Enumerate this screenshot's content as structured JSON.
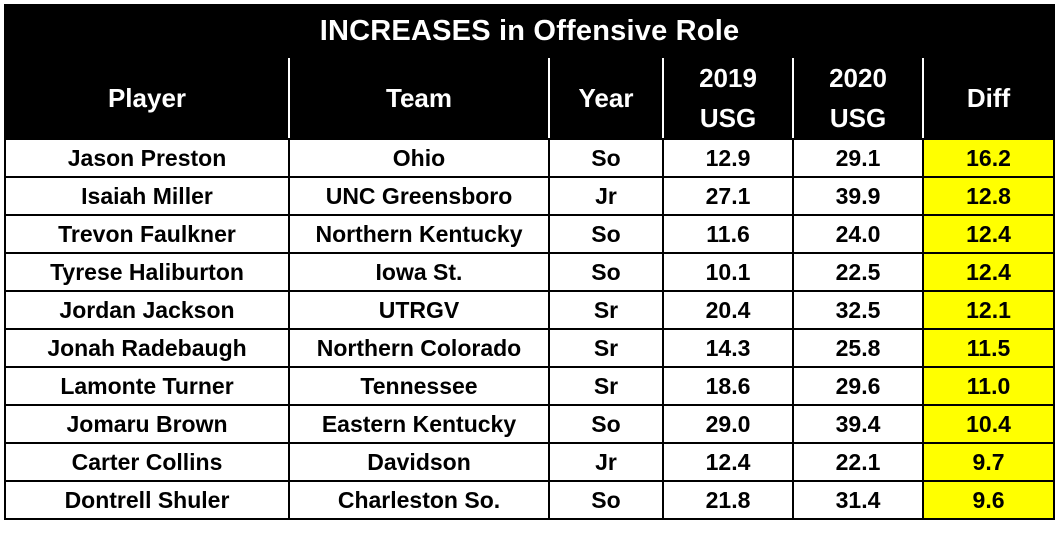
{
  "title": "INCREASES in Offensive Role",
  "columns": {
    "player": "Player",
    "team": "Team",
    "year": "Year",
    "usg2019_line1": "2019",
    "usg2019_line2": "USG",
    "usg2020_line1": "2020",
    "usg2020_line2": "USG",
    "diff": "Diff"
  },
  "highlight_color": "#ffff00",
  "rows": [
    {
      "player": "Jason Preston",
      "team": "Ohio",
      "year": "So",
      "usg2019": "12.9",
      "usg2020": "29.1",
      "diff": "16.2"
    },
    {
      "player": "Isaiah Miller",
      "team": "UNC Greensboro",
      "year": "Jr",
      "usg2019": "27.1",
      "usg2020": "39.9",
      "diff": "12.8"
    },
    {
      "player": "Trevon Faulkner",
      "team": "Northern Kentucky",
      "year": "So",
      "usg2019": "11.6",
      "usg2020": "24.0",
      "diff": "12.4"
    },
    {
      "player": "Tyrese Haliburton",
      "team": "Iowa St.",
      "year": "So",
      "usg2019": "10.1",
      "usg2020": "22.5",
      "diff": "12.4"
    },
    {
      "player": "Jordan Jackson",
      "team": "UTRGV",
      "year": "Sr",
      "usg2019": "20.4",
      "usg2020": "32.5",
      "diff": "12.1"
    },
    {
      "player": "Jonah Radebaugh",
      "team": "Northern Colorado",
      "year": "Sr",
      "usg2019": "14.3",
      "usg2020": "25.8",
      "diff": "11.5"
    },
    {
      "player": "Lamonte Turner",
      "team": "Tennessee",
      "year": "Sr",
      "usg2019": "18.6",
      "usg2020": "29.6",
      "diff": "11.0"
    },
    {
      "player": "Jomaru Brown",
      "team": "Eastern Kentucky",
      "year": "So",
      "usg2019": "29.0",
      "usg2020": "39.4",
      "diff": "10.4"
    },
    {
      "player": "Carter Collins",
      "team": "Davidson",
      "year": "Jr",
      "usg2019": "12.4",
      "usg2020": "22.1",
      "diff": "9.7"
    },
    {
      "player": "Dontrell Shuler",
      "team": "Charleston So.",
      "year": "So",
      "usg2019": "21.8",
      "usg2020": "31.4",
      "diff": "9.6"
    }
  ]
}
